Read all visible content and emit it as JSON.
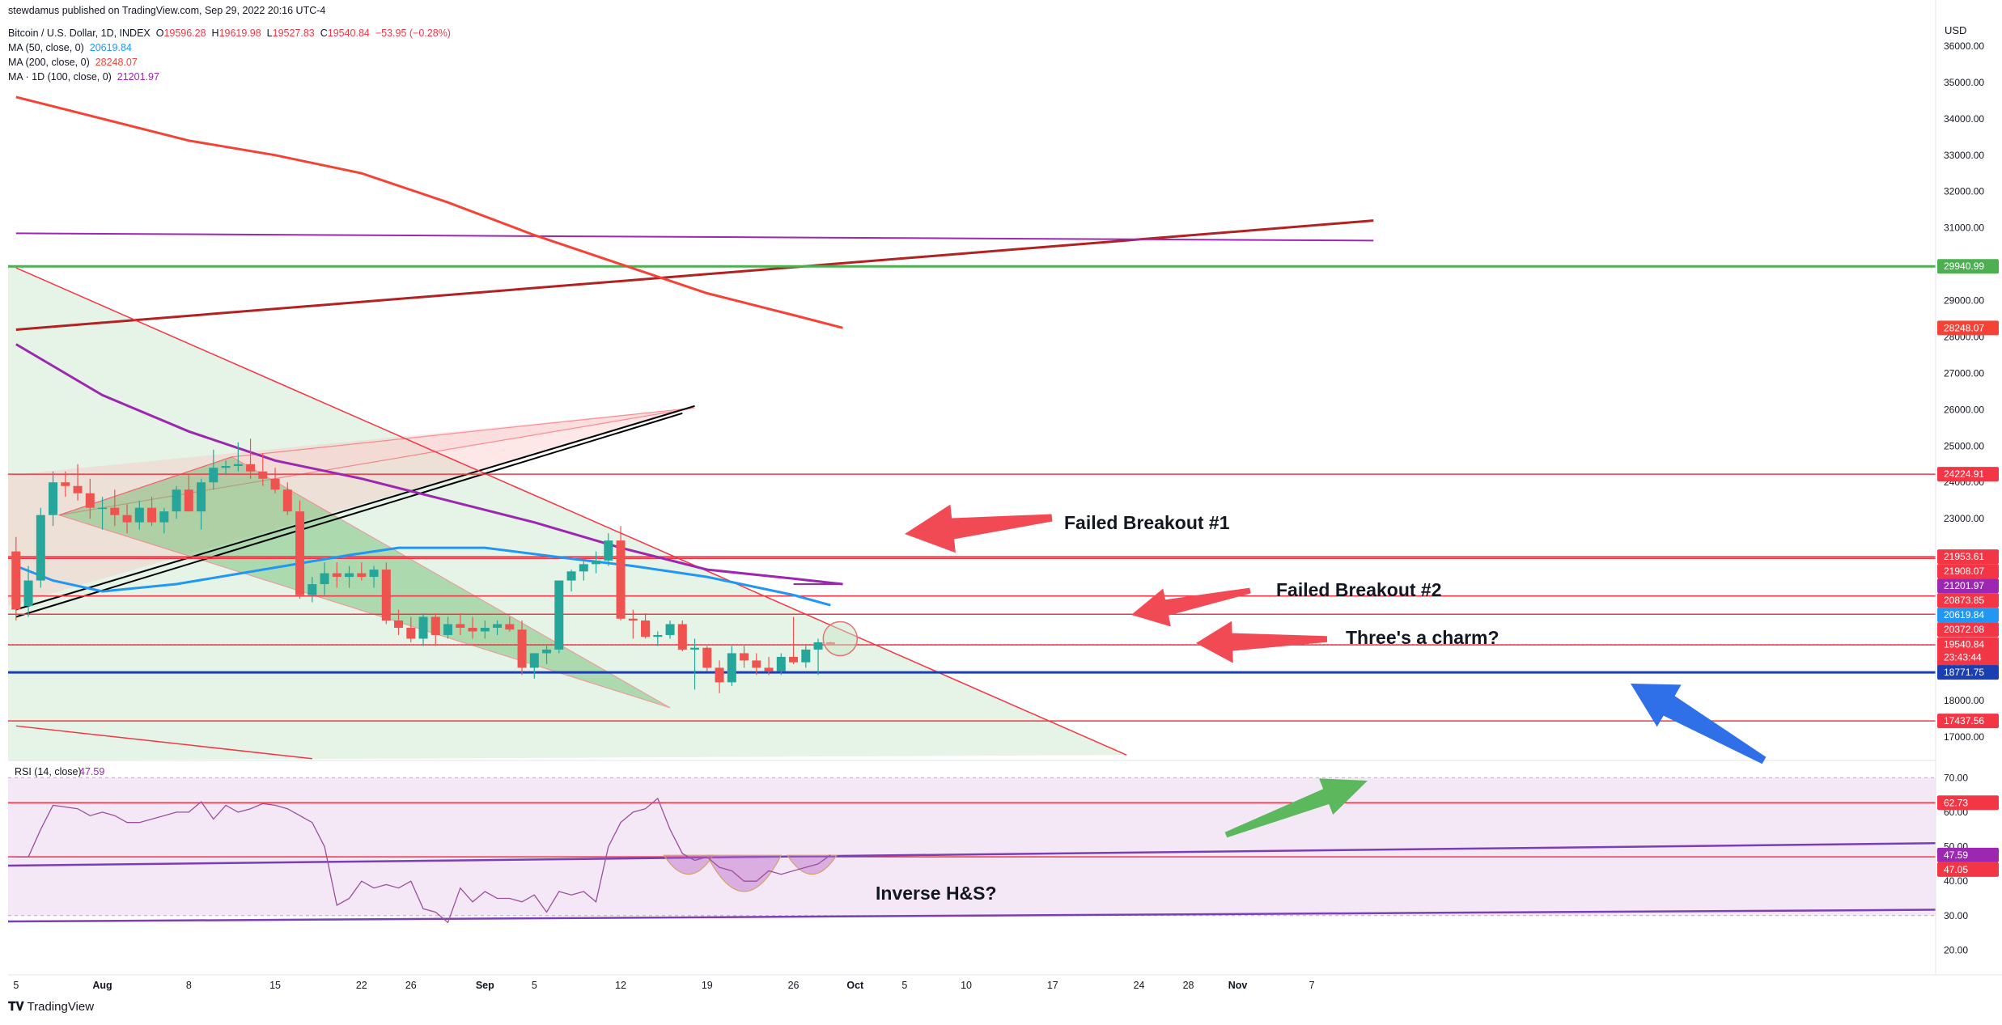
{
  "header": {
    "published_by": "stewdamus published on TradingView.com, Sep 29, 2022 20:16 UTC-4",
    "instrument": "Bitcoin / U.S. Dollar, 1D, INDEX",
    "o_label": "O",
    "o_value": "19596.28",
    "h_label": "H",
    "h_value": "19619.98",
    "l_label": "L",
    "l_value": "19527.83",
    "c_label": "C",
    "c_value": "19540.84",
    "change": "−53.95 (−0.28%)",
    "indicators": [
      {
        "label": "MA (50, close, 0)",
        "value": "20619.84",
        "color": "#2196f3"
      },
      {
        "label": "MA (200, close, 0)",
        "value": "28248.07",
        "color": "#f44336"
      },
      {
        "label": "MA · 1D (100, close, 0)",
        "value": "21201.97",
        "color": "#9c27b0"
      }
    ]
  },
  "currency": "USD",
  "footer": {
    "logo_text": "TradingView"
  },
  "colors": {
    "up": "#26a69a",
    "down": "#ef5350",
    "level_red": "#f23645",
    "support_blue": "#1a3fb3",
    "resistance_green": "#4caf50",
    "rsi_fill": "#f3e5f5",
    "arrow_red": "#f24a55",
    "arrow_green": "#5cb85c",
    "arrow_blue": "#2f6fe8"
  },
  "chart_data": {
    "type": "candlestick",
    "price_axis": {
      "range": [
        16350,
        36600
      ],
      "ticks": [
        "36000.00",
        "35000.00",
        "34000.00",
        "33000.00",
        "32000.00",
        "31000.00",
        "30000.00",
        "29000.00",
        "28000.00",
        "27000.00",
        "26000.00",
        "25000.00",
        "24000.00",
        "23000.00",
        "22000.00",
        "21000.00",
        "20000.00",
        "19000.00",
        "18000.00",
        "17000.00"
      ]
    },
    "rsi_axis": {
      "range": [
        14,
        75
      ],
      "ticks": [
        "70.00",
        "60.00",
        "50.00",
        "40.00",
        "30.00",
        "20.00"
      ]
    },
    "time_axis": {
      "ticks": [
        {
          "day": 0,
          "label": "5"
        },
        {
          "day": 7,
          "label": "Aug"
        },
        {
          "day": 14,
          "label": "8"
        },
        {
          "day": 21,
          "label": "15"
        },
        {
          "day": 28,
          "label": "22"
        },
        {
          "day": 32,
          "label": "26"
        },
        {
          "day": 38,
          "label": "Sep"
        },
        {
          "day": 42,
          "label": "5"
        },
        {
          "day": 49,
          "label": "12"
        },
        {
          "day": 56,
          "label": "19"
        },
        {
          "day": 63,
          "label": "26"
        },
        {
          "day": 68,
          "label": "Oct"
        },
        {
          "day": 72,
          "label": "5"
        },
        {
          "day": 77,
          "label": "10"
        },
        {
          "day": 84,
          "label": "17"
        },
        {
          "day": 91,
          "label": "24"
        },
        {
          "day": 95,
          "label": "28"
        },
        {
          "day": 99,
          "label": "Nov"
        },
        {
          "day": 105,
          "label": "7"
        }
      ]
    },
    "candles": [
      {
        "o": 22100,
        "h": 22500,
        "l": 20200,
        "c": 20500
      },
      {
        "o": 20600,
        "h": 21700,
        "l": 20300,
        "c": 21300
      },
      {
        "o": 21300,
        "h": 23300,
        "l": 21100,
        "c": 23100
      },
      {
        "o": 23100,
        "h": 24300,
        "l": 22800,
        "c": 24000
      },
      {
        "o": 24000,
        "h": 24300,
        "l": 23600,
        "c": 23900
      },
      {
        "o": 23900,
        "h": 24500,
        "l": 23500,
        "c": 23700
      },
      {
        "o": 23700,
        "h": 24100,
        "l": 23000,
        "c": 23300
      },
      {
        "o": 23300,
        "h": 23600,
        "l": 22700,
        "c": 23300
      },
      {
        "o": 23300,
        "h": 23800,
        "l": 22800,
        "c": 23100
      },
      {
        "o": 23100,
        "h": 23400,
        "l": 22600,
        "c": 22900
      },
      {
        "o": 22900,
        "h": 23500,
        "l": 22700,
        "c": 23300
      },
      {
        "o": 23300,
        "h": 23600,
        "l": 22800,
        "c": 22900
      },
      {
        "o": 22900,
        "h": 23300,
        "l": 22600,
        "c": 23200
      },
      {
        "o": 23200,
        "h": 23900,
        "l": 23000,
        "c": 23800
      },
      {
        "o": 23800,
        "h": 24200,
        "l": 23200,
        "c": 23200
      },
      {
        "o": 23200,
        "h": 24100,
        "l": 22700,
        "c": 24000
      },
      {
        "o": 24000,
        "h": 24900,
        "l": 23800,
        "c": 24400
      },
      {
        "o": 24400,
        "h": 24600,
        "l": 24200,
        "c": 24450
      },
      {
        "o": 24450,
        "h": 25100,
        "l": 24300,
        "c": 24500
      },
      {
        "o": 24500,
        "h": 25200,
        "l": 24100,
        "c": 24300
      },
      {
        "o": 24300,
        "h": 24800,
        "l": 23900,
        "c": 24100
      },
      {
        "o": 24100,
        "h": 24400,
        "l": 23700,
        "c": 23800
      },
      {
        "o": 23800,
        "h": 24000,
        "l": 23100,
        "c": 23200
      },
      {
        "o": 23200,
        "h": 23500,
        "l": 20800,
        "c": 20900
      },
      {
        "o": 20900,
        "h": 21400,
        "l": 20700,
        "c": 21200
      },
      {
        "o": 21200,
        "h": 21800,
        "l": 20900,
        "c": 21500
      },
      {
        "o": 21500,
        "h": 21800,
        "l": 21100,
        "c": 21400
      },
      {
        "o": 21400,
        "h": 21700,
        "l": 21100,
        "c": 21500
      },
      {
        "o": 21500,
        "h": 21800,
        "l": 21300,
        "c": 21400
      },
      {
        "o": 21400,
        "h": 21700,
        "l": 21100,
        "c": 21600
      },
      {
        "o": 21600,
        "h": 21800,
        "l": 20100,
        "c": 20200
      },
      {
        "o": 20200,
        "h": 20500,
        "l": 19800,
        "c": 20000
      },
      {
        "o": 20000,
        "h": 20300,
        "l": 19600,
        "c": 19700
      },
      {
        "o": 19700,
        "h": 20400,
        "l": 19500,
        "c": 20300
      },
      {
        "o": 20300,
        "h": 20400,
        "l": 19500,
        "c": 19800
      },
      {
        "o": 19800,
        "h": 20300,
        "l": 19700,
        "c": 20100
      },
      {
        "o": 20100,
        "h": 20400,
        "l": 19800,
        "c": 20000
      },
      {
        "o": 20000,
        "h": 20300,
        "l": 19700,
        "c": 19900
      },
      {
        "o": 19900,
        "h": 20200,
        "l": 19700,
        "c": 20000
      },
      {
        "o": 20000,
        "h": 20200,
        "l": 19800,
        "c": 20100
      },
      {
        "o": 20100,
        "h": 20300,
        "l": 19900,
        "c": 19950
      },
      {
        "o": 19950,
        "h": 20200,
        "l": 18700,
        "c": 18900
      },
      {
        "o": 18900,
        "h": 19300,
        "l": 18600,
        "c": 19300
      },
      {
        "o": 19300,
        "h": 19500,
        "l": 19000,
        "c": 19400
      },
      {
        "o": 19400,
        "h": 21300,
        "l": 19300,
        "c": 21300
      },
      {
        "o": 21300,
        "h": 21600,
        "l": 21000,
        "c": 21550
      },
      {
        "o": 21550,
        "h": 21900,
        "l": 21300,
        "c": 21750
      },
      {
        "o": 21750,
        "h": 22100,
        "l": 21500,
        "c": 21850
      },
      {
        "o": 21850,
        "h": 22600,
        "l": 21700,
        "c": 22400
      },
      {
        "o": 22400,
        "h": 22800,
        "l": 20200,
        "c": 20250
      },
      {
        "o": 20250,
        "h": 20500,
        "l": 19700,
        "c": 20200
      },
      {
        "o": 20200,
        "h": 20400,
        "l": 19700,
        "c": 19750
      },
      {
        "o": 19750,
        "h": 19900,
        "l": 19500,
        "c": 19800
      },
      {
        "o": 19800,
        "h": 20200,
        "l": 19700,
        "c": 20100
      },
      {
        "o": 20100,
        "h": 20200,
        "l": 19350,
        "c": 19400
      },
      {
        "o": 19400,
        "h": 19700,
        "l": 18300,
        "c": 19450
      },
      {
        "o": 19450,
        "h": 19500,
        "l": 18800,
        "c": 18900
      },
      {
        "o": 18900,
        "h": 19100,
        "l": 18200,
        "c": 18500
      },
      {
        "o": 18500,
        "h": 19500,
        "l": 18400,
        "c": 19300
      },
      {
        "o": 19300,
        "h": 19500,
        "l": 18900,
        "c": 19100
      },
      {
        "o": 19100,
        "h": 19300,
        "l": 18700,
        "c": 18900
      },
      {
        "o": 18900,
        "h": 19200,
        "l": 18700,
        "c": 18800
      },
      {
        "o": 18800,
        "h": 19300,
        "l": 18700,
        "c": 19200
      },
      {
        "o": 19200,
        "h": 20300,
        "l": 19000,
        "c": 19050
      },
      {
        "o": 19050,
        "h": 19500,
        "l": 18900,
        "c": 19400
      },
      {
        "o": 19400,
        "h": 19700,
        "l": 18700,
        "c": 19600
      },
      {
        "o": 19600,
        "h": 19620,
        "l": 19528,
        "c": 19541
      }
    ],
    "moving_averages": [
      {
        "name": "MA (50, close, 0)",
        "color": "#2196f3",
        "points": [
          [
            0,
            21700
          ],
          [
            3,
            21300
          ],
          [
            7,
            21000
          ],
          [
            13,
            21200
          ],
          [
            20,
            21600
          ],
          [
            27,
            22000
          ],
          [
            31,
            22200
          ],
          [
            38,
            22200
          ],
          [
            45,
            21900
          ],
          [
            50,
            21700
          ],
          [
            56,
            21400
          ],
          [
            63,
            20900
          ],
          [
            66,
            20620
          ]
        ]
      },
      {
        "name": "MA (200, close, 0)",
        "color": "#f44336",
        "points": [
          [
            0,
            34600
          ],
          [
            7,
            34000
          ],
          [
            14,
            33400
          ],
          [
            21,
            33000
          ],
          [
            28,
            32500
          ],
          [
            35,
            31700
          ],
          [
            42,
            30800
          ],
          [
            49,
            30000
          ],
          [
            56,
            29200
          ],
          [
            63,
            28600
          ],
          [
            67,
            28248
          ]
        ]
      },
      {
        "name": "MA · 1D (100, close, 0)",
        "color": "#9c27b0",
        "points": [
          [
            0,
            27800
          ],
          [
            7,
            26400
          ],
          [
            14,
            25400
          ],
          [
            21,
            24600
          ],
          [
            28,
            24100
          ],
          [
            35,
            23500
          ],
          [
            42,
            22900
          ],
          [
            49,
            22200
          ],
          [
            56,
            21600
          ],
          [
            63,
            21350
          ],
          [
            67,
            21202
          ]
        ]
      }
    ],
    "horizontal_levels": [
      {
        "value": 29940.99,
        "label": "29940.99",
        "color": "#4caf50"
      },
      {
        "value": 24224.91,
        "label": "24224.91",
        "color": "#f23645"
      },
      {
        "value": 21953.61,
        "label": "21953.61",
        "color": "#f23645"
      },
      {
        "value": 21908.07,
        "label": "21908.07",
        "color": "#f23645"
      },
      {
        "value": 20873.85,
        "label": "20873.85",
        "color": "#f23645"
      },
      {
        "value": 20372.08,
        "label": "20372.08",
        "color": "#f23645"
      },
      {
        "value": 19529.11,
        "label": "19529.11",
        "color": "#f23645"
      },
      {
        "value": 18771.75,
        "label": "18771.75",
        "color": "#1a3fb3"
      },
      {
        "value": 17437.56,
        "label": "17437.56",
        "color": "#f23645"
      }
    ],
    "price_tags": [
      {
        "value": 28248.07,
        "label": "28248.07",
        "color": "#f44336"
      },
      {
        "value": 21201.97,
        "label": "21201.97",
        "color": "#9c27b0"
      },
      {
        "value": 20619.84,
        "label": "20619.84",
        "color": "#2196f3"
      }
    ],
    "last_price": {
      "value": 19540.84,
      "label": "19540.84",
      "countdown": "23:43:44",
      "color": "#f23645"
    },
    "trendlines": [
      {
        "from": [
          0,
          28200
        ],
        "to": [
          110,
          31200
        ],
        "color": "#b22222",
        "width": 3
      },
      {
        "from": [
          0,
          30850
        ],
        "to": [
          110,
          30650
        ],
        "color": "#9c27b0",
        "width": 2
      },
      {
        "from": [
          0,
          20500
        ],
        "to": [
          55,
          26100
        ],
        "color": "#000000",
        "width": 2
      },
      {
        "from": [
          0,
          29900
        ],
        "to": [
          90,
          16500
        ],
        "color": "#f23645",
        "width": 1.5
      },
      {
        "from": [
          0,
          17300
        ],
        "to": [
          24,
          16400
        ],
        "color": "#f23645",
        "width": 1.5
      }
    ],
    "rsi": {
      "label": "RSI (14, close)",
      "value": "47.59",
      "series": [
        47,
        47,
        55,
        62,
        61.5,
        61,
        59,
        60,
        59,
        57,
        57,
        58,
        59,
        60,
        60,
        63,
        58,
        62,
        60,
        61,
        62.5,
        62,
        61,
        59,
        57,
        50,
        33,
        35,
        40,
        38,
        39,
        38,
        40,
        32,
        31,
        28,
        38,
        34,
        37,
        35,
        35,
        34,
        36,
        31,
        37,
        36,
        37,
        34,
        50,
        57,
        60,
        61,
        64,
        55,
        48,
        46,
        47,
        44,
        43,
        40,
        40,
        43,
        42,
        43,
        44,
        45,
        47.6
      ],
      "levels": [
        {
          "value": 62.73,
          "label": "62.73",
          "color": "#f23645"
        },
        {
          "value": 47.59,
          "label": "47.59",
          "color": "#9c27b0"
        },
        {
          "value": 47.05,
          "label": "47.05",
          "color": "#f23645"
        }
      ]
    },
    "annotations": [
      {
        "text": "Failed Breakout #1"
      },
      {
        "text": "Failed Breakout #2"
      },
      {
        "text": "Three's a charm?"
      },
      {
        "text": "Inverse H&S?"
      }
    ]
  }
}
